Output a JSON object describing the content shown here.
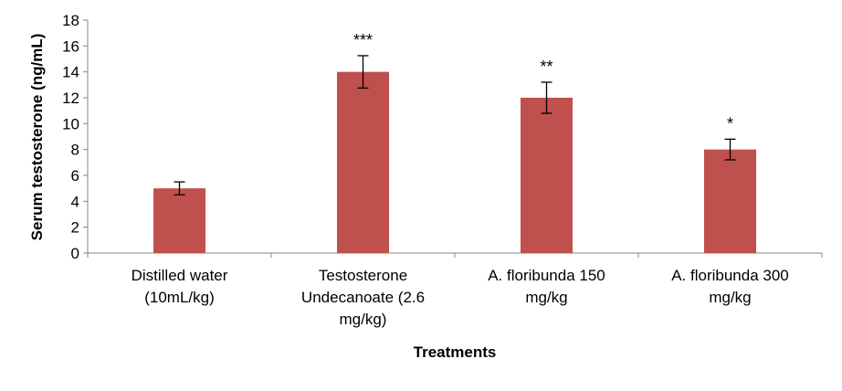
{
  "chart_data": {
    "type": "bar",
    "title": "",
    "xlabel": "Treatments",
    "ylabel": "Serum testosterone (ng/mL)",
    "ylim": [
      0,
      18
    ],
    "yticks": [
      0,
      2,
      4,
      6,
      8,
      10,
      12,
      14,
      16,
      18
    ],
    "categories": [
      [
        "Distilled water",
        "(10mL/kg)"
      ],
      [
        "Testosterone",
        "Undecanoate (2.6",
        "mg/kg)"
      ],
      [
        "A. floribunda 150",
        "mg/kg"
      ],
      [
        "A. floribunda 300",
        "mg/kg"
      ]
    ],
    "values": [
      5,
      14,
      12,
      8
    ],
    "errors": [
      0.5,
      1.25,
      1.2,
      0.8
    ],
    "significance": [
      "",
      "***",
      "**",
      "*"
    ],
    "bar_color": "#C0504D",
    "grid": false,
    "legend": "none"
  }
}
